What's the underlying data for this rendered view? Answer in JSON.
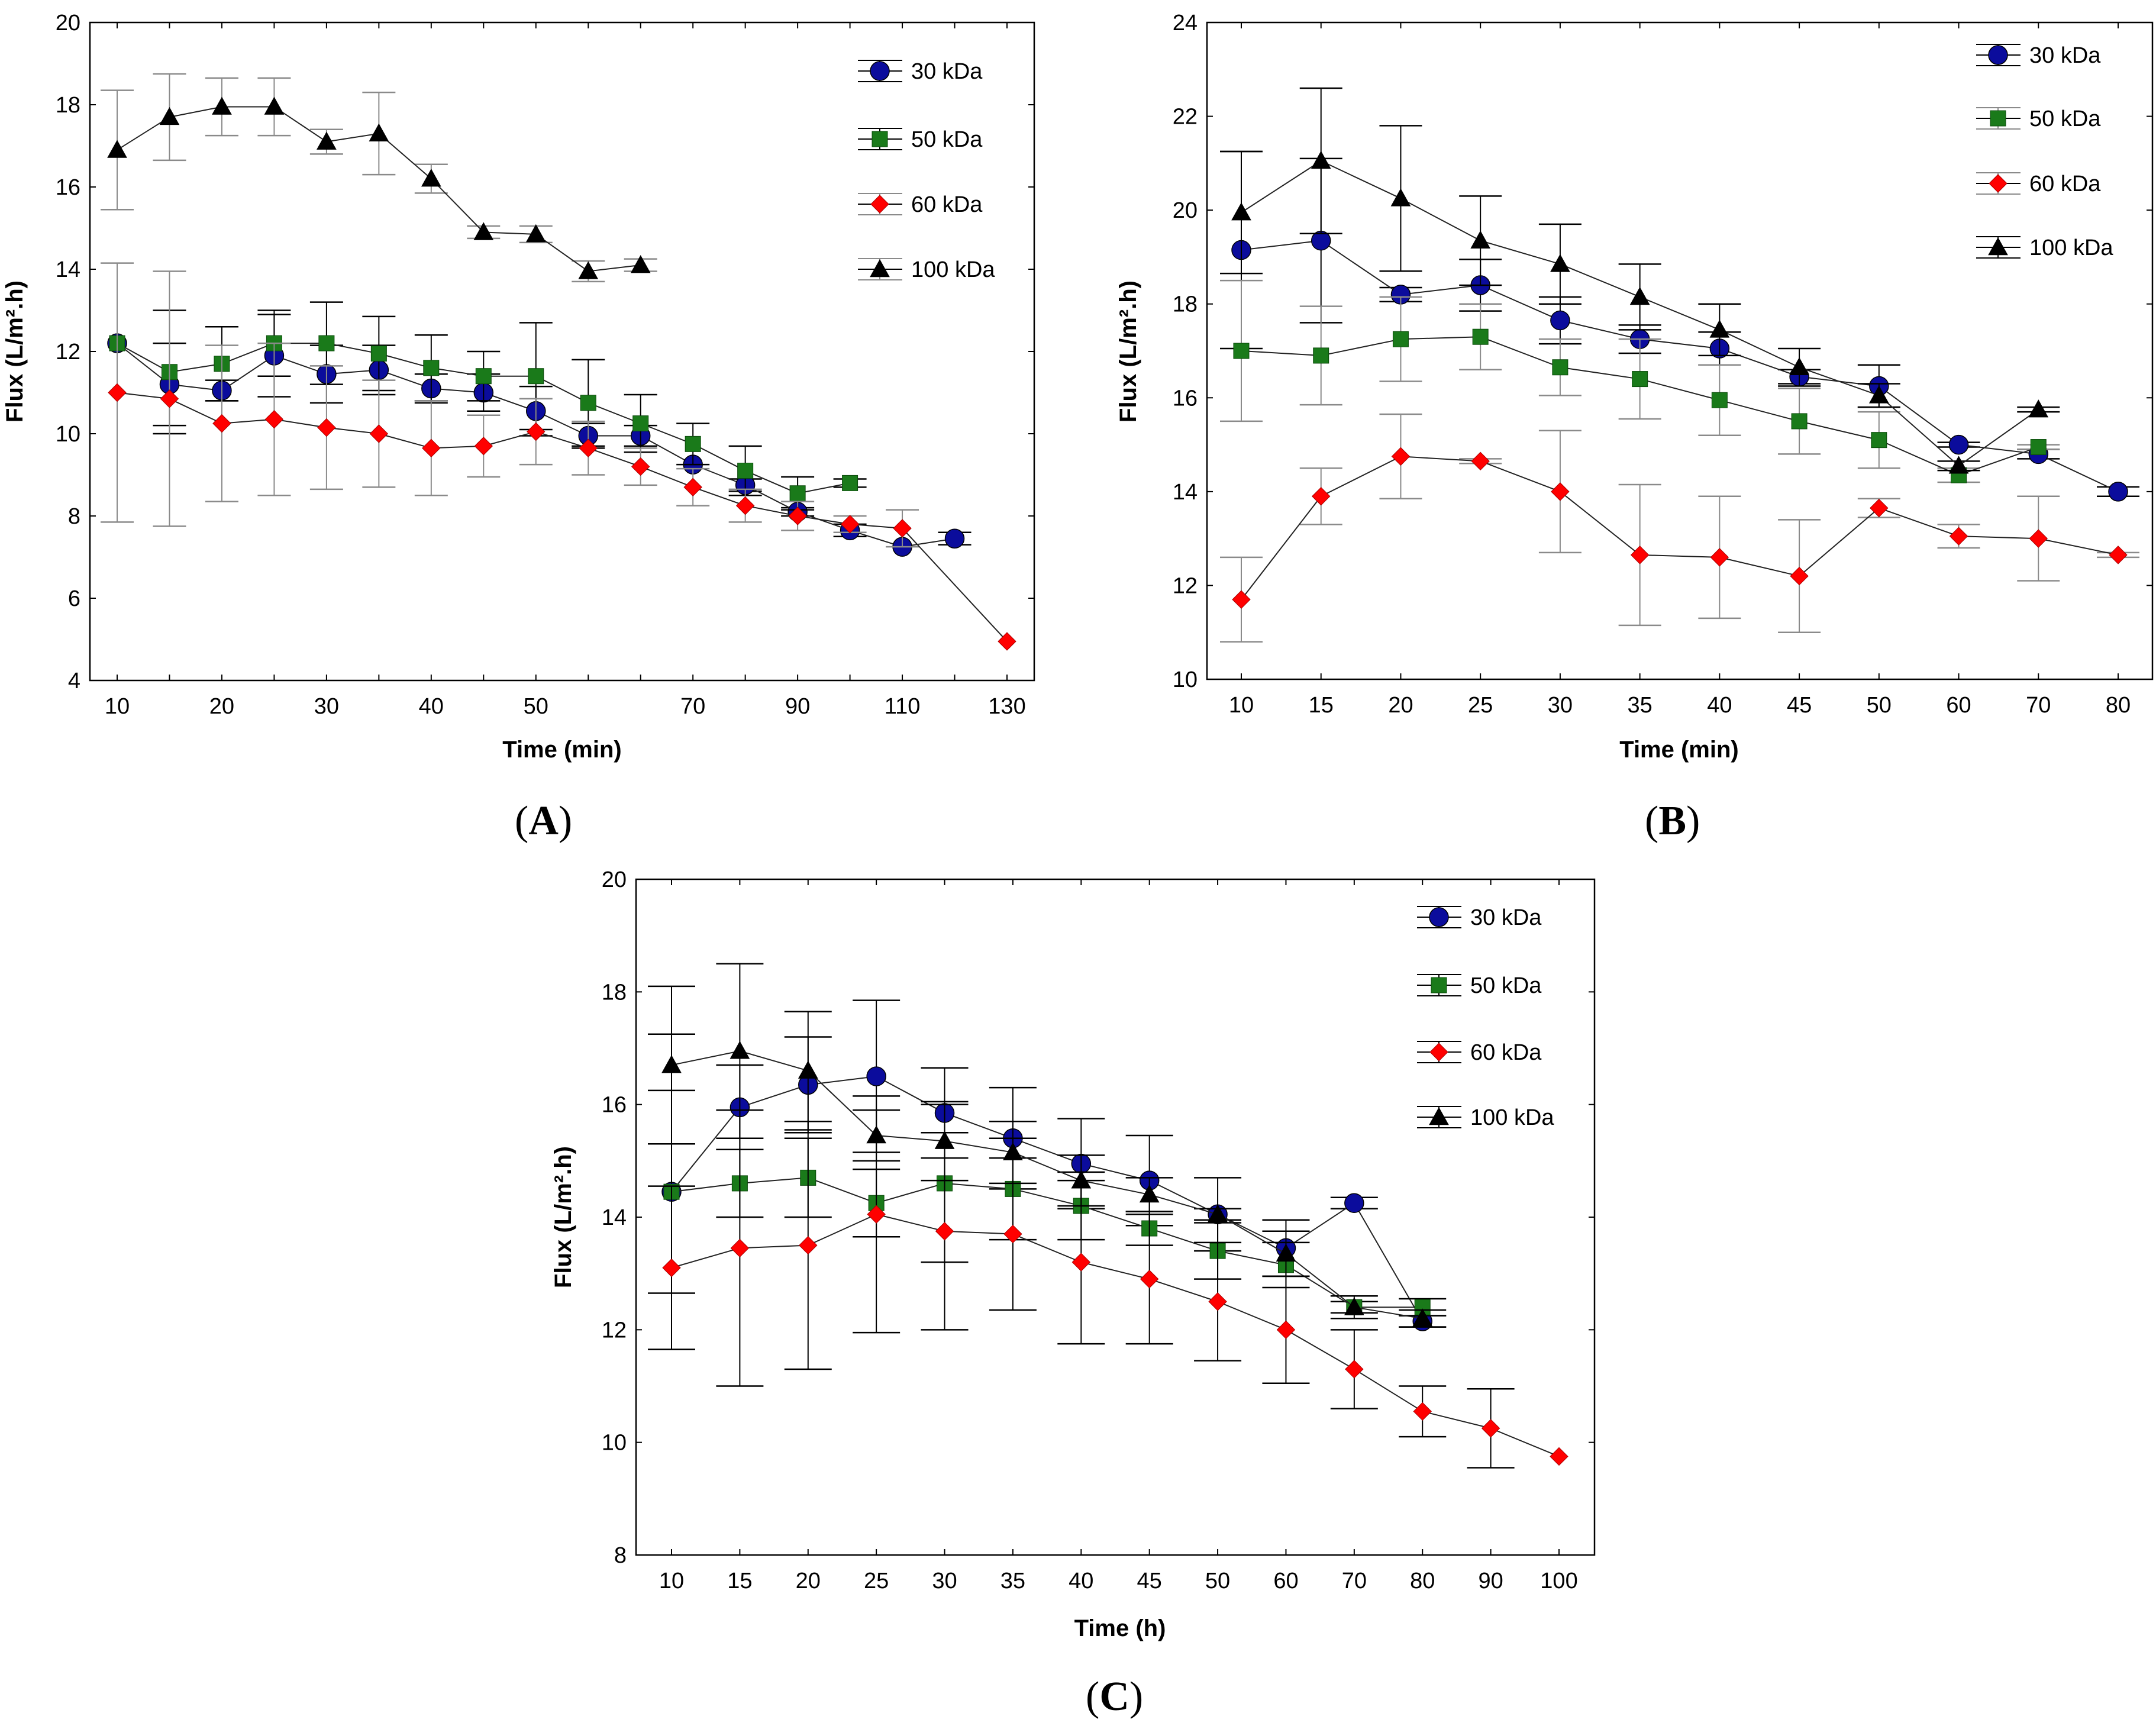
{
  "colors": {
    "30 kDa": "#0b0c9c",
    "50 kDa": "#1a7a1a",
    "60 kDa": "#ff0000",
    "100 kDa": "#000000",
    "error_black": "#000000",
    "error_gray": "#8a8a8a"
  },
  "chart_data": [
    {
      "type": "line",
      "panel_label": "A",
      "xlabel": "Time (min)",
      "ylabel": "Flux (L/m².h)",
      "categories": [
        "10",
        "15",
        "20",
        "25",
        "30",
        "35",
        "40",
        "45",
        "50",
        "55",
        "60",
        "70",
        "80",
        "90",
        "100",
        "110",
        "120",
        "130"
      ],
      "tick_labels": [
        "10",
        "20",
        "30",
        "40",
        "50",
        "70",
        "90",
        "110",
        "130"
      ],
      "ylim": [
        4,
        20
      ],
      "yticks": [
        "4",
        "6",
        "8",
        "10",
        "12",
        "14",
        "16",
        "18",
        "20"
      ],
      "legend": [
        "30 kDa",
        "50 kDa",
        "60 kDa",
        "100 kDa"
      ],
      "series": [
        {
          "name": "30 kDa",
          "marker": "circle",
          "errcolor": "black",
          "values": [
            12.2,
            11.2,
            11.05,
            11.9,
            11.45,
            11.55,
            11.1,
            11.0,
            10.55,
            9.95,
            9.95,
            9.25,
            8.75,
            8.1,
            7.65,
            7.25,
            7.45,
            null
          ],
          "errors": [
            0,
            1.0,
            0.25,
            1.0,
            0.7,
            0.6,
            0.35,
            0.45,
            0.6,
            0.3,
            0.25,
            0,
            0.15,
            0.1,
            0.15,
            0,
            0.15,
            0
          ]
        },
        {
          "name": "50 kDa",
          "marker": "square",
          "errcolor": "black",
          "values": [
            12.2,
            11.5,
            11.7,
            12.2,
            12.2,
            11.95,
            11.6,
            11.4,
            11.4,
            10.75,
            10.25,
            9.75,
            9.1,
            8.55,
            8.8,
            null,
            null,
            null
          ],
          "errors": [
            0,
            1.5,
            0.9,
            0.8,
            1.0,
            0.9,
            0.8,
            0.6,
            1.3,
            1.05,
            0.7,
            0.5,
            0.6,
            0.4,
            0.1,
            0,
            0,
            0
          ]
        },
        {
          "name": "60 kDa",
          "marker": "diamond",
          "errcolor": "gray",
          "values": [
            11.0,
            10.85,
            10.25,
            10.35,
            10.15,
            10.0,
            9.65,
            9.7,
            10.05,
            9.65,
            9.2,
            8.7,
            8.25,
            8.0,
            7.8,
            7.7,
            null,
            4.95
          ],
          "errors": [
            3.15,
            3.1,
            1.9,
            1.85,
            1.5,
            1.3,
            1.15,
            0.75,
            0.8,
            0.65,
            0.45,
            0.45,
            0.4,
            0.35,
            0.2,
            0.45,
            0,
            0
          ]
        },
        {
          "name": "100 kDa",
          "marker": "triangle",
          "errcolor": "gray",
          "values": [
            16.9,
            17.7,
            17.95,
            17.95,
            17.1,
            17.3,
            16.2,
            14.9,
            14.85,
            13.95,
            14.1,
            null,
            null,
            null,
            null,
            null,
            null,
            null
          ],
          "errors": [
            1.45,
            1.05,
            0.7,
            0.7,
            0.3,
            1.0,
            0.35,
            0.15,
            0.2,
            0.25,
            0.15,
            0,
            0,
            0,
            0,
            0,
            0,
            0
          ]
        }
      ]
    },
    {
      "type": "line",
      "panel_label": "B",
      "xlabel": "Time (min)",
      "ylabel": "Flux (L/m².h)",
      "categories": [
        "10",
        "15",
        "20",
        "25",
        "30",
        "35",
        "40",
        "45",
        "50",
        "60",
        "70",
        "80"
      ],
      "tick_labels": [
        "10",
        "15",
        "20",
        "25",
        "30",
        "35",
        "40",
        "45",
        "50",
        "60",
        "70",
        "80"
      ],
      "ylim": [
        10,
        24
      ],
      "yticks": [
        "10",
        "12",
        "14",
        "16",
        "18",
        "20",
        "22",
        "24"
      ],
      "legend": [
        "30 kDa",
        "50 kDa",
        "60 kDa",
        "100 kDa"
      ],
      "series": [
        {
          "name": "30 kDa",
          "marker": "circle",
          "errcolor": "black",
          "values": [
            19.15,
            19.35,
            18.2,
            18.4,
            17.65,
            17.25,
            17.05,
            16.45,
            16.25,
            15.0,
            14.8,
            14.0
          ],
          "errors": [
            2.1,
            1.75,
            0.15,
            0.55,
            0.5,
            0.3,
            0.35,
            0.15,
            0.45,
            0.05,
            0.1,
            0.1
          ]
        },
        {
          "name": "50 kDa",
          "marker": "square",
          "errcolor": "gray",
          "values": [
            17.0,
            16.9,
            17.25,
            17.3,
            16.65,
            16.4,
            15.95,
            15.5,
            15.1,
            14.35,
            14.95,
            null
          ],
          "errors": [
            1.5,
            1.05,
            0.9,
            0.7,
            0.6,
            0.85,
            0.75,
            0.7,
            0.6,
            0.15,
            0.05,
            0
          ]
        },
        {
          "name": "60 kDa",
          "marker": "diamond",
          "errcolor": "gray",
          "values": [
            11.7,
            13.9,
            14.75,
            14.65,
            14.0,
            12.65,
            12.6,
            12.2,
            13.65,
            13.05,
            13.0,
            12.65
          ],
          "errors": [
            0.9,
            0.6,
            0.9,
            0.05,
            1.3,
            1.5,
            1.3,
            1.2,
            0.2,
            0.25,
            0.9,
            0.05
          ]
        },
        {
          "name": "100 kDa",
          "marker": "triangle",
          "errcolor": "black",
          "values": [
            19.95,
            21.05,
            20.25,
            19.35,
            18.85,
            18.15,
            17.45,
            16.65,
            16.05,
            14.55,
            15.75,
            null
          ],
          "errors": [
            1.3,
            1.55,
            1.55,
            0.95,
            0.85,
            0.7,
            0.55,
            0.4,
            0.25,
            0.1,
            0.05,
            0
          ]
        }
      ]
    },
    {
      "type": "line",
      "panel_label": "C",
      "xlabel": "Time (h)",
      "ylabel": "Flux (L/m².h)",
      "categories": [
        "10",
        "15",
        "20",
        "25",
        "30",
        "35",
        "40",
        "45",
        "50",
        "60",
        "70",
        "80",
        "90",
        "100"
      ],
      "tick_labels": [
        "10",
        "15",
        "20",
        "25",
        "30",
        "35",
        "40",
        "45",
        "50",
        "60",
        "70",
        "80",
        "90",
        "100"
      ],
      "ylim": [
        8,
        20
      ],
      "yticks": [
        "8",
        "10",
        "12",
        "14",
        "16",
        "18",
        "20"
      ],
      "legend": [
        "30 kDa",
        "50 kDa",
        "60 kDa",
        "100 kDa"
      ],
      "series": [
        {
          "name": "30 kDa",
          "marker": "circle",
          "errcolor": "black",
          "values": [
            14.45,
            15.95,
            16.35,
            16.5,
            15.85,
            15.4,
            14.95,
            14.65,
            14.05,
            13.45,
            14.25,
            12.15,
            null,
            null
          ],
          "errors": [
            1.8,
            0.75,
            0.85,
            1.35,
            0.8,
            0.9,
            0.8,
            0.8,
            0.65,
            0.5,
            0.1,
            0.1,
            0,
            0
          ]
        },
        {
          "name": "50 kDa",
          "marker": "square",
          "errcolor": "black",
          "values": [
            14.45,
            14.6,
            14.7,
            14.25,
            14.6,
            14.5,
            14.2,
            13.8,
            13.4,
            13.15,
            12.4,
            12.4,
            null,
            null
          ],
          "errors": [
            2.8,
            0.6,
            0.7,
            0.6,
            1.4,
            0.9,
            0.6,
            0.3,
            0.5,
            0.4,
            0.1,
            0.15,
            0,
            0
          ]
        },
        {
          "name": "60 kDa",
          "marker": "diamond",
          "errcolor": "black",
          "values": [
            13.1,
            13.45,
            13.5,
            14.05,
            13.75,
            13.7,
            13.2,
            12.9,
            12.5,
            12.0,
            11.3,
            10.55,
            10.25,
            9.75
          ],
          "errors": [
            1.45,
            2.45,
            2.2,
            2.1,
            1.75,
            1.35,
            1.45,
            1.15,
            1.05,
            0.95,
            0.7,
            0.45,
            0.7,
            0
          ]
        },
        {
          "name": "100 kDa",
          "marker": "triangle",
          "errcolor": "black",
          "values": [
            16.7,
            16.95,
            16.6,
            15.45,
            15.35,
            15.15,
            14.65,
            14.4,
            14.05,
            13.35,
            12.4,
            12.2,
            null,
            null
          ],
          "errors": [
            1.4,
            1.55,
            1.05,
            0.45,
            0.7,
            0.55,
            0.45,
            0.3,
            0.1,
            0.4,
            0.2,
            0.15,
            0,
            0
          ]
        }
      ]
    }
  ]
}
